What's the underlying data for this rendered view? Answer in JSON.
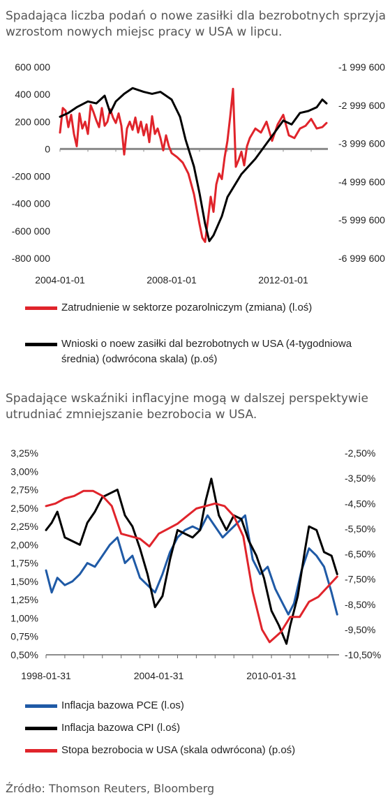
{
  "title1": "Spadająca liczba podań o nowe zasiłki dla bezrobotnych sprzyja wzrostom nowych miejsc pracy w USA w lipcu.",
  "title2": "Spadające wskaźniki inflacyjne mogą w dalszej perspektywie utrudniać zmniejszanie bezrobocia w USA.",
  "source": "Źródło: Thomson Reuters, Bloomberg",
  "colors": {
    "red": "#e0242b",
    "black": "#000000",
    "blue": "#1f5aa6",
    "zero": "#8a8a8a"
  },
  "chart_data": [
    {
      "type": "line",
      "title": "",
      "x_ticks": [
        "2004-01-01",
        "2008-01-01",
        "2012-01-01"
      ],
      "y_left_ticks": [
        "600 000",
        "400 000",
        "200 000",
        "0",
        "-200 000",
        "-400 000",
        "-600 000",
        "-800 000"
      ],
      "y_right_ticks": [
        "-1 999 600",
        "-2 999 600",
        "-3 999 600",
        "-4 999 600",
        "-5 999 600",
        "-6 999 600"
      ],
      "ylim_left": [
        -800000,
        600000
      ],
      "ylim_right": [
        -6999600,
        -1999600
      ],
      "xlim": [
        2004.0,
        2013.6
      ],
      "legend": [
        {
          "name": "Zatrudnienie w sektorze pozarolniczym (zmiana) (l.oś)",
          "color": "#e0242b"
        },
        {
          "name": "Wnioski o noew zasiłki dal bezrobotnych w USA (4-tygodniowa średnia) (odwrócona skala) (p.oś)",
          "color": "#000000"
        }
      ],
      "series": [
        {
          "name": "Zatrudnienie w sektorze pozarolniczym (zmiana) (l.oś)",
          "axis": "left",
          "x": [
            2004.0,
            2004.1,
            2004.2,
            2004.3,
            2004.4,
            2004.5,
            2004.6,
            2004.7,
            2004.8,
            2004.9,
            2005.0,
            2005.1,
            2005.2,
            2005.3,
            2005.4,
            2005.5,
            2005.6,
            2005.7,
            2005.8,
            2005.9,
            2006.0,
            2006.1,
            2006.2,
            2006.3,
            2006.4,
            2006.5,
            2006.6,
            2006.7,
            2006.8,
            2006.9,
            2007.0,
            2007.1,
            2007.2,
            2007.3,
            2007.4,
            2007.5,
            2007.6,
            2007.7,
            2007.8,
            2007.9,
            2008.0,
            2008.2,
            2008.4,
            2008.6,
            2008.8,
            2009.0,
            2009.1,
            2009.2,
            2009.3,
            2009.4,
            2009.5,
            2009.6,
            2009.7,
            2009.8,
            2009.9,
            2010.0,
            2010.1,
            2010.2,
            2010.3,
            2010.4,
            2010.5,
            2010.6,
            2010.7,
            2010.8,
            2011.0,
            2011.2,
            2011.4,
            2011.6,
            2011.8,
            2012.0,
            2012.2,
            2012.4,
            2012.6,
            2012.8,
            2013.0,
            2013.2,
            2013.4,
            2013.55
          ],
          "y": [
            120000,
            300000,
            280000,
            160000,
            250000,
            110000,
            20000,
            260000,
            150000,
            200000,
            110000,
            320000,
            270000,
            210000,
            160000,
            300000,
            170000,
            200000,
            290000,
            230000,
            190000,
            260000,
            170000,
            -40000,
            150000,
            200000,
            140000,
            230000,
            120000,
            200000,
            100000,
            180000,
            50000,
            240000,
            110000,
            150000,
            80000,
            -10000,
            100000,
            20000,
            -30000,
            -60000,
            -100000,
            -180000,
            -330000,
            -550000,
            -650000,
            -680000,
            -520000,
            -350000,
            -460000,
            -260000,
            -180000,
            -220000,
            -60000,
            60000,
            240000,
            440000,
            -130000,
            -80000,
            -20000,
            -120000,
            20000,
            80000,
            150000,
            120000,
            200000,
            60000,
            180000,
            250000,
            100000,
            80000,
            150000,
            170000,
            220000,
            150000,
            160000,
            190000
          ]
        },
        {
          "name": "Wnioski o noew zasiłki dal bezrobotnych w USA (4-tygodniowa średnia) (odwrócona skala) (p.oś)",
          "axis": "right",
          "x": [
            2004.0,
            2004.3,
            2004.6,
            2005.0,
            2005.3,
            2005.6,
            2005.8,
            2006.0,
            2006.3,
            2006.6,
            2007.0,
            2007.3,
            2007.6,
            2008.0,
            2008.3,
            2008.5,
            2008.8,
            2009.0,
            2009.2,
            2009.35,
            2009.5,
            2009.8,
            2010.0,
            2010.5,
            2011.0,
            2011.3,
            2011.6,
            2012.0,
            2012.3,
            2012.6,
            2012.9,
            2013.2,
            2013.4,
            2013.55
          ],
          "y": [
            -3300000,
            -3200000,
            -3050000,
            -2900000,
            -2950000,
            -2750000,
            -3200000,
            -2900000,
            -2700000,
            -2550000,
            -2650000,
            -2700000,
            -2650000,
            -2850000,
            -3300000,
            -3900000,
            -4600000,
            -5300000,
            -6100000,
            -6550000,
            -6400000,
            -5900000,
            -5400000,
            -4800000,
            -4400000,
            -4100000,
            -3800000,
            -3400000,
            -3500000,
            -3200000,
            -3150000,
            -3050000,
            -2850000,
            -2950000
          ]
        }
      ]
    },
    {
      "type": "line",
      "title": "",
      "x_ticks": [
        "1998-01-31",
        "2004-01-31",
        "2010-01-31"
      ],
      "y_left_ticks": [
        "3,25%",
        "3,00%",
        "2,75%",
        "2,50%",
        "2,25%",
        "2,00%",
        "1,75%",
        "1,50%",
        "1,25%",
        "1,00%",
        "0,75%",
        "0,50%"
      ],
      "y_right_ticks": [
        "-2,50%",
        "-3,50%",
        "-4,50%",
        "-5,50%",
        "-6,50%",
        "-7,50%",
        "-8,50%",
        "-9,50%",
        "-10,50%"
      ],
      "ylim_left": [
        0.5,
        3.25
      ],
      "ylim_right": [
        -10.5,
        -2.5
      ],
      "xlim": [
        1998.0,
        2013.6
      ],
      "legend": [
        {
          "name": "Inflacja bazowa PCE (l.os)",
          "color": "#1f5aa6"
        },
        {
          "name": "Inflacja bazowa CPI (l.oś)",
          "color": "#000000"
        },
        {
          "name": "Stopa bezrobocia w USA (skala odwrócona) (p.oś)",
          "color": "#e0242b"
        }
      ],
      "series": [
        {
          "name": "Inflacja bazowa PCE (l.os)",
          "axis": "left",
          "x": [
            1998.0,
            1998.3,
            1998.6,
            1999.0,
            1999.4,
            1999.8,
            2000.2,
            2000.6,
            2001.0,
            2001.4,
            2001.8,
            2002.2,
            2002.6,
            2003.0,
            2003.4,
            2003.8,
            2004.2,
            2004.6,
            2005.0,
            2005.4,
            2005.8,
            2006.2,
            2006.6,
            2007.0,
            2007.4,
            2007.8,
            2008.2,
            2008.6,
            2009.0,
            2009.4,
            2009.8,
            2010.2,
            2010.6,
            2010.9,
            2011.2,
            2011.6,
            2012.0,
            2012.4,
            2012.8,
            2013.2,
            2013.5
          ],
          "y": [
            1.65,
            1.35,
            1.55,
            1.45,
            1.5,
            1.6,
            1.75,
            1.7,
            1.85,
            2.0,
            2.1,
            1.75,
            1.85,
            1.55,
            1.45,
            1.35,
            1.6,
            1.9,
            2.1,
            2.2,
            2.25,
            2.2,
            2.4,
            2.25,
            2.1,
            2.2,
            2.3,
            2.4,
            1.8,
            1.6,
            1.7,
            1.4,
            1.2,
            1.05,
            1.2,
            1.65,
            1.95,
            1.85,
            1.7,
            1.35,
            1.05
          ]
        },
        {
          "name": "Inflacja bazowa CPI (l.oś)",
          "axis": "left",
          "x": [
            1998.0,
            1998.3,
            1998.6,
            1999.0,
            1999.4,
            1999.8,
            2000.2,
            2000.6,
            2001.0,
            2001.4,
            2001.8,
            2002.2,
            2002.6,
            2003.0,
            2003.4,
            2003.8,
            2004.2,
            2004.6,
            2005.0,
            2005.4,
            2005.8,
            2006.2,
            2006.5,
            2006.8,
            2007.2,
            2007.6,
            2008.0,
            2008.4,
            2008.8,
            2009.2,
            2009.6,
            2010.0,
            2010.4,
            2010.8,
            2011.0,
            2011.4,
            2011.8,
            2012.0,
            2012.4,
            2012.8,
            2013.2,
            2013.5
          ],
          "y": [
            2.2,
            2.3,
            2.45,
            2.1,
            2.05,
            2.0,
            2.3,
            2.45,
            2.65,
            2.7,
            2.75,
            2.4,
            2.25,
            1.95,
            1.6,
            1.15,
            1.3,
            1.8,
            2.2,
            2.15,
            2.1,
            2.2,
            2.6,
            2.9,
            2.4,
            2.2,
            2.4,
            2.35,
            2.05,
            1.85,
            1.55,
            1.1,
            0.9,
            0.65,
            0.9,
            1.3,
            1.95,
            2.25,
            2.2,
            1.9,
            1.85,
            1.6
          ]
        },
        {
          "name": "Stopa bezrobocia w USA (skala odwrócona) (p.oś)",
          "axis": "right",
          "x": [
            1998.0,
            1998.5,
            1999.0,
            1999.5,
            2000.0,
            2000.5,
            2001.0,
            2001.5,
            2002.0,
            2002.5,
            2003.0,
            2003.5,
            2004.0,
            2004.5,
            2005.0,
            2005.5,
            2006.0,
            2006.5,
            2007.0,
            2007.5,
            2008.0,
            2008.5,
            2009.0,
            2009.5,
            2009.9,
            2010.5,
            2011.0,
            2011.5,
            2012.0,
            2012.5,
            2013.0,
            2013.5
          ],
          "y": [
            -4.6,
            -4.5,
            -4.3,
            -4.2,
            -4.0,
            -4.0,
            -4.2,
            -4.6,
            -5.7,
            -5.8,
            -5.9,
            -6.2,
            -5.7,
            -5.5,
            -5.3,
            -5.0,
            -4.7,
            -4.6,
            -4.5,
            -4.6,
            -5.0,
            -5.8,
            -8.0,
            -9.5,
            -10.0,
            -9.6,
            -9.0,
            -9.0,
            -8.4,
            -8.2,
            -7.8,
            -7.4
          ]
        }
      ]
    }
  ]
}
